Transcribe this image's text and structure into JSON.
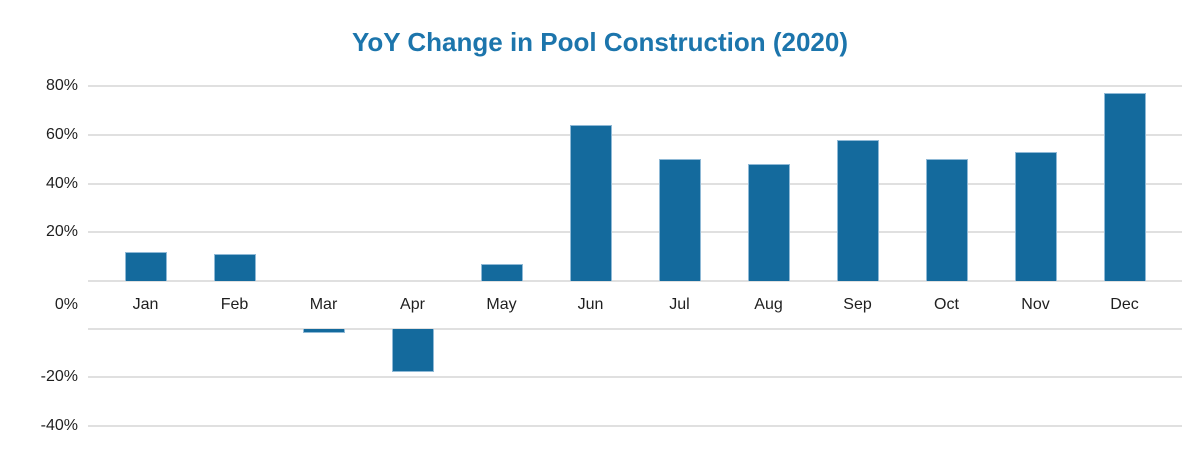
{
  "chart_data": {
    "type": "bar",
    "title": "YoY Change in Pool Construction (2020)",
    "categories": [
      "Jan",
      "Feb",
      "Mar",
      "Apr",
      "May",
      "Jun",
      "Jul",
      "Aug",
      "Sep",
      "Oct",
      "Nov",
      "Dec"
    ],
    "values": [
      12,
      11,
      -2,
      -18,
      7,
      64,
      50,
      48,
      58,
      50,
      53,
      77
    ],
    "value_unit": "%",
    "xlabel": "",
    "ylabel": "",
    "ylim": [
      -40,
      80
    ],
    "y_tick_step": 20,
    "y_tick_labels": [
      "80%",
      "60%",
      "40%",
      "20%",
      "0%",
      "-20%",
      "-40%"
    ],
    "grid": "horizontal",
    "legend_position": "none",
    "colors": {
      "bar_fill": "#146A9D",
      "bar_border": "#8FB9D6",
      "title_text": "#1C75AC",
      "grid_line": "#E0E0E0",
      "axis_text": "#1F1F1F",
      "background": "#FFFFFF"
    }
  }
}
